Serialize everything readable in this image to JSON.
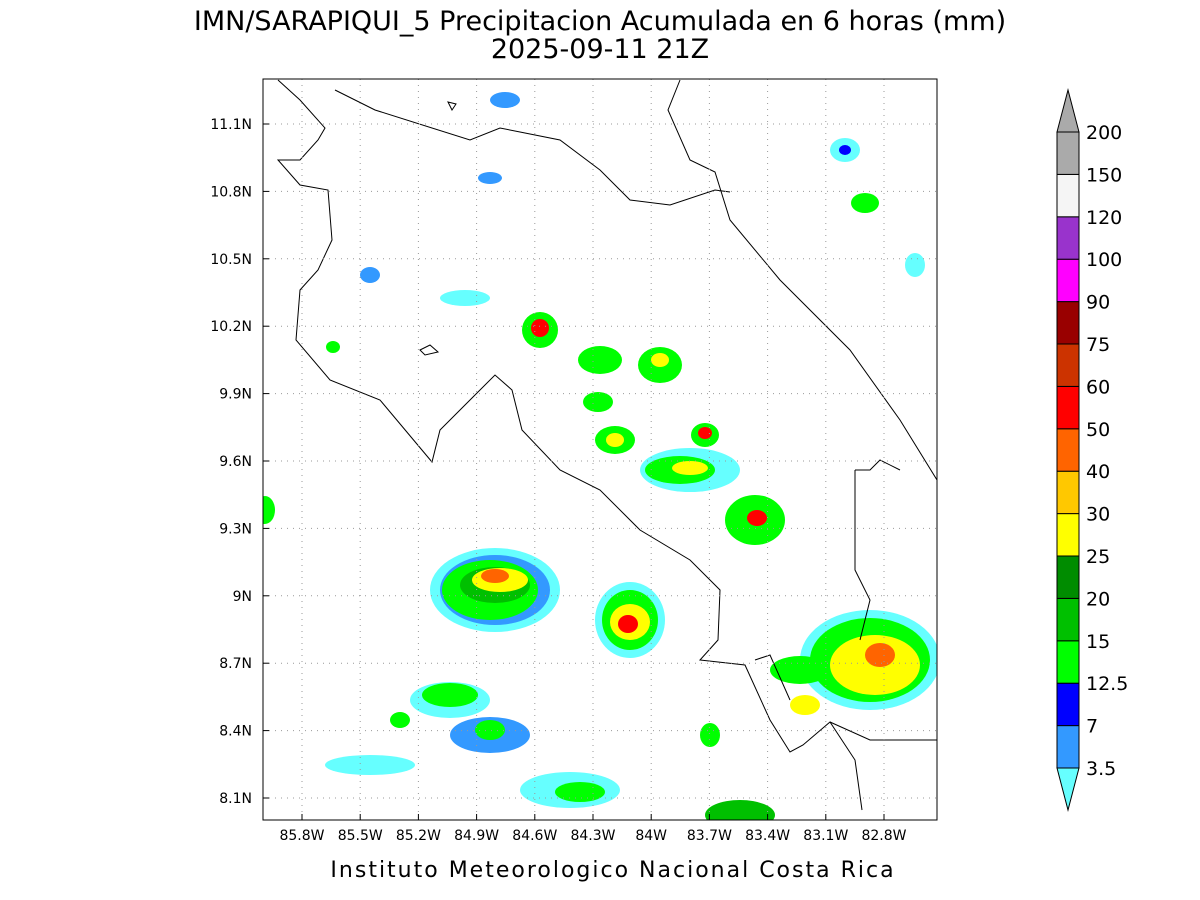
{
  "title": "IMN/SARAPIQUI_5 Precipitacion Acumulada en 6 horas (mm)",
  "subtitle": "2025-09-11 21Z",
  "map": {
    "x_labels": [
      "85.8W",
      "85.5W",
      "85.2W",
      "84.9W",
      "84.6W",
      "84.3W",
      "84W",
      "83.7W",
      "83.4W",
      "83.1W",
      "82.8W"
    ],
    "y_labels": [
      "11.1N",
      "10.8N",
      "10.5N",
      "10.2N",
      "9.9N",
      "9.6N",
      "9.3N",
      "9N",
      "8.7N",
      "8.4N",
      "8.1N"
    ]
  },
  "colorbar": {
    "levels": [
      3.5,
      7,
      12.5,
      15,
      20,
      25,
      30,
      40,
      50,
      60,
      75,
      90,
      100,
      120,
      150,
      200
    ],
    "colors": [
      "#3399ff",
      "#0000ff",
      "#00ff00",
      "#00c000",
      "#008c00",
      "#ffff00",
      "#ffc800",
      "#ff6400",
      "#ff0000",
      "#cc3300",
      "#990000",
      "#ff00ff",
      "#9933cc",
      "#f5f5f5",
      "#aaaaaa"
    ],
    "under_color": "#66ffff"
  },
  "footer": "Instituto Meteorologico Nacional Costa Rica"
}
